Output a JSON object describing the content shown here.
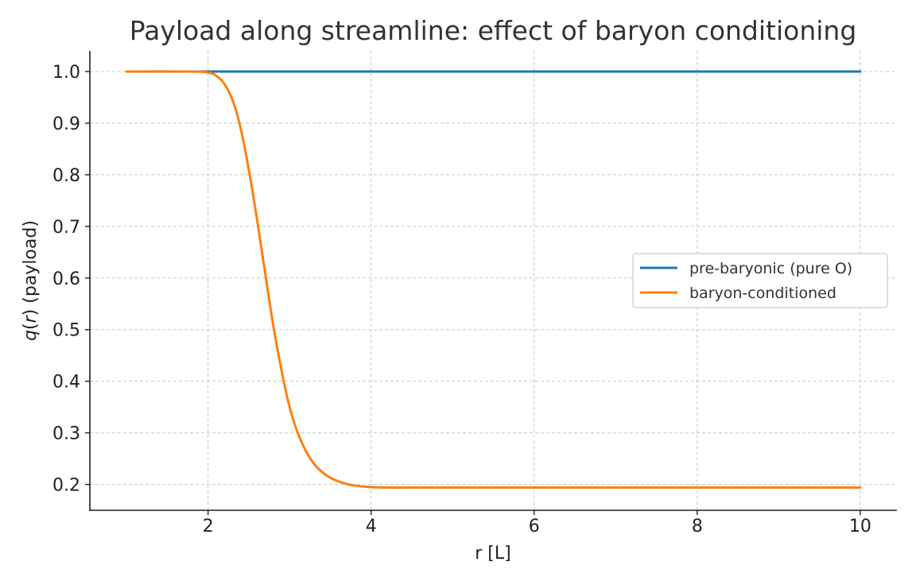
{
  "chart_data": {
    "type": "line",
    "title": "Payload along streamline: effect of baryon conditioning",
    "xlabel": "r [L]",
    "ylabel_parts": [
      "q",
      "(",
      "r",
      ")",
      " (payload)"
    ],
    "xlim": [
      0.55,
      10.45
    ],
    "ylim": [
      0.15,
      1.04
    ],
    "xticks": [
      2,
      4,
      6,
      8,
      10
    ],
    "xtick_labels": [
      "2",
      "4",
      "6",
      "8",
      "10"
    ],
    "yticks": [
      0.2,
      0.3,
      0.4,
      0.5,
      0.6,
      0.7,
      0.8,
      0.9,
      1.0
    ],
    "ytick_labels": [
      "0.2",
      "0.3",
      "0.4",
      "0.5",
      "0.6",
      "0.7",
      "0.8",
      "0.9",
      "1.0"
    ],
    "grid": true,
    "legend_position": "center-right",
    "series": [
      {
        "name": "pre-baryonic (pure O)",
        "color": "#1f77b4",
        "x": [
          1.0,
          2.0,
          3.0,
          4.0,
          5.0,
          6.0,
          7.0,
          8.0,
          9.0,
          10.0
        ],
        "y": [
          1.0,
          1.0,
          1.0,
          1.0,
          1.0,
          1.0,
          1.0,
          1.0,
          1.0,
          1.0
        ]
      },
      {
        "name": "baryon-conditioned",
        "color": "#ff7f0e",
        "x": [
          1.0,
          1.8,
          2.0,
          2.1,
          2.2,
          2.3,
          2.4,
          2.5,
          2.6,
          2.7,
          2.8,
          2.9,
          3.0,
          3.1,
          3.2,
          3.3,
          3.4,
          3.5,
          3.6,
          3.7,
          3.8,
          3.9,
          4.0,
          4.2,
          4.5,
          5.0,
          6.0,
          7.0,
          8.0,
          9.0,
          10.0
        ],
        "y": [
          1.0,
          1.0,
          0.998,
          0.992,
          0.976,
          0.945,
          0.89,
          0.81,
          0.714,
          0.61,
          0.508,
          0.422,
          0.35,
          0.3,
          0.265,
          0.24,
          0.224,
          0.213,
          0.206,
          0.201,
          0.198,
          0.196,
          0.195,
          0.194,
          0.194,
          0.194,
          0.194,
          0.194,
          0.194,
          0.194,
          0.194
        ]
      }
    ]
  }
}
